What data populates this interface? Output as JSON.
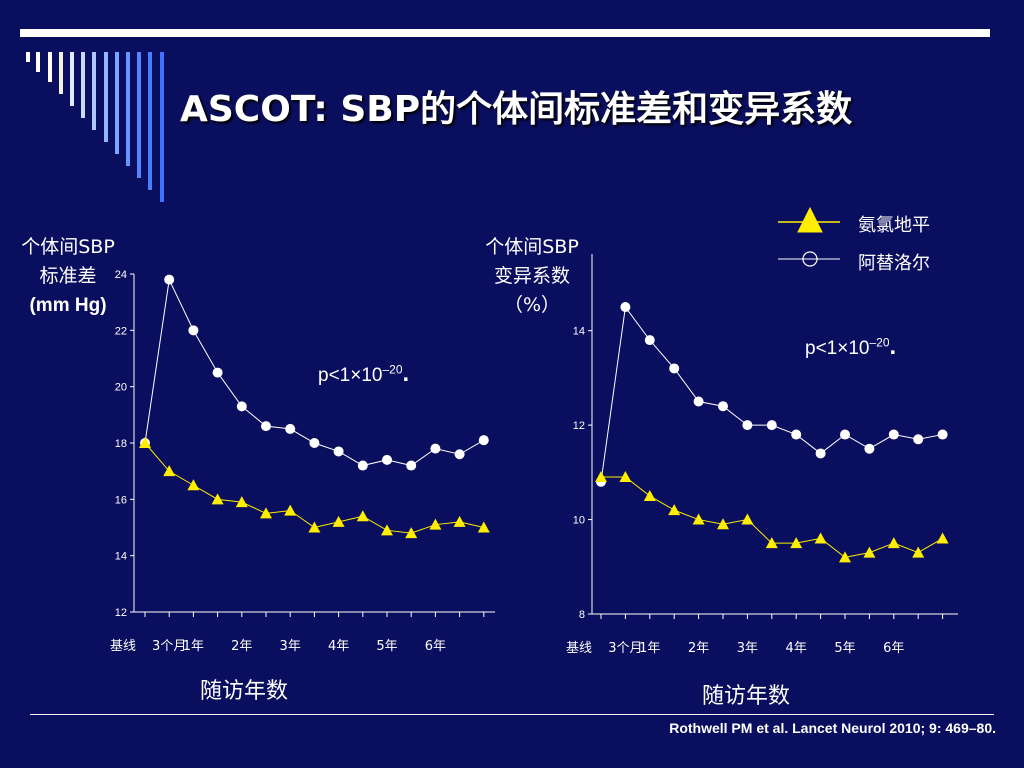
{
  "title": "ASCOT: SBP的个体间标准差和变异系数",
  "legend": {
    "amlodipine": "氨氯地平",
    "atenolol": "阿替洛尔"
  },
  "colors": {
    "background": "#0a0e5e",
    "amlodipine": "#ffee00",
    "atenolol": "#ffffff"
  },
  "citation": "Rothwell PM et al. Lancet Neurol 2010; 9: 469–80.",
  "chart_data": [
    {
      "type": "line",
      "ylabel_lines": [
        "个体间SBP",
        "标准差",
        "(mm Hg)"
      ],
      "xlabel": "随访年数",
      "ylim": [
        12,
        24
      ],
      "yticks": [
        12,
        14,
        16,
        18,
        20,
        22,
        24
      ],
      "x": [
        0,
        1,
        2,
        3,
        4,
        5,
        6,
        7,
        8,
        9,
        10,
        11,
        12,
        13,
        14
      ],
      "xtick_labels": [
        {
          "x": 0,
          "label": "基线"
        },
        {
          "x": 1,
          "label": "3个月"
        },
        {
          "x": 2,
          "label": "1年"
        },
        {
          "x": 4,
          "label": "2年"
        },
        {
          "x": 6,
          "label": "3年"
        },
        {
          "x": 8,
          "label": "4年"
        },
        {
          "x": 10,
          "label": "5年"
        },
        {
          "x": 12,
          "label": "6年"
        }
      ],
      "annotation": {
        "text": "p<1×10",
        "sup": "–20",
        "suffix": "."
      },
      "series": [
        {
          "name": "阿替洛尔",
          "marker": "circle",
          "values": [
            18.0,
            23.8,
            22.0,
            20.5,
            19.3,
            18.6,
            18.5,
            18.0,
            17.7,
            17.2,
            17.4,
            17.2,
            17.8,
            17.6,
            18.1
          ]
        },
        {
          "name": "氨氯地平",
          "marker": "triangle",
          "values": [
            18.0,
            17.0,
            16.5,
            16.0,
            15.9,
            15.5,
            15.6,
            15.0,
            15.2,
            15.4,
            14.9,
            14.8,
            15.1,
            15.2,
            15.0
          ]
        }
      ]
    },
    {
      "type": "line",
      "ylabel_lines": [
        "个体间SBP",
        "变异系数",
        "（%）"
      ],
      "xlabel": "随访年数",
      "ylim": [
        8,
        15.2
      ],
      "yticks": [
        8,
        10,
        12,
        14
      ],
      "x": [
        0,
        1,
        2,
        3,
        4,
        5,
        6,
        7,
        8,
        9,
        10,
        11,
        12,
        13,
        14
      ],
      "xtick_labels": [
        {
          "x": 0,
          "label": "基线"
        },
        {
          "x": 1,
          "label": "3个月"
        },
        {
          "x": 2,
          "label": "1年"
        },
        {
          "x": 4,
          "label": "2年"
        },
        {
          "x": 6,
          "label": "3年"
        },
        {
          "x": 8,
          "label": "4年"
        },
        {
          "x": 10,
          "label": "5年"
        },
        {
          "x": 12,
          "label": "6年"
        }
      ],
      "annotation": {
        "text": "p<1×10",
        "sup": "–20",
        "suffix": "."
      },
      "series": [
        {
          "name": "阿替洛尔",
          "marker": "circle",
          "values": [
            10.8,
            14.5,
            13.8,
            13.2,
            12.5,
            12.4,
            12.0,
            12.0,
            11.8,
            11.4,
            11.8,
            11.5,
            11.8,
            11.7,
            11.8
          ]
        },
        {
          "name": "氨氯地平",
          "marker": "triangle",
          "values": [
            10.9,
            10.9,
            10.5,
            10.2,
            10.0,
            9.9,
            10.0,
            9.5,
            9.5,
            9.6,
            9.2,
            9.3,
            9.5,
            9.3,
            9.6
          ]
        }
      ]
    }
  ]
}
